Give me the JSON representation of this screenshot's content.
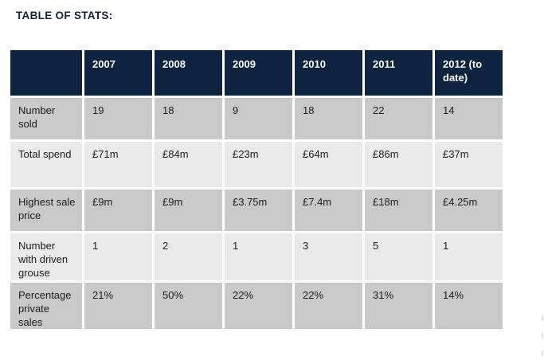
{
  "page": {
    "title": "TABLE OF STATS:"
  },
  "table": {
    "columns": [
      "",
      "2007",
      "2008",
      "2009",
      "2010",
      "2011",
      "2012 (to date)"
    ],
    "rows": [
      {
        "label": "Number sold",
        "values": [
          "19",
          "18",
          "9",
          "18",
          "22",
          "14"
        ]
      },
      {
        "label": "Total spend",
        "values": [
          "£71m",
          "£84m",
          "£23m",
          "£64m",
          "£86m",
          "£37m"
        ]
      },
      {
        "label": "Highest sale price",
        "values": [
          "£9m",
          "£9m",
          "£3.75m",
          "£7.4m",
          "£18m",
          "£4.25m"
        ]
      },
      {
        "label": "Number with driven grouse",
        "values": [
          "1",
          "2",
          "1",
          "3",
          "5",
          "1"
        ]
      },
      {
        "label": "Percentage private sales",
        "values": [
          "21%",
          "50%",
          "22%",
          "22%",
          "31%",
          "14%"
        ]
      }
    ],
    "colors": {
      "header_bg": "#0e2340",
      "header_text": "#ffffff",
      "row_grey": "#c9c9c9",
      "row_light": "#eaeaea",
      "cell_text": "#1c1c1c",
      "title_color": "#14213a"
    }
  }
}
